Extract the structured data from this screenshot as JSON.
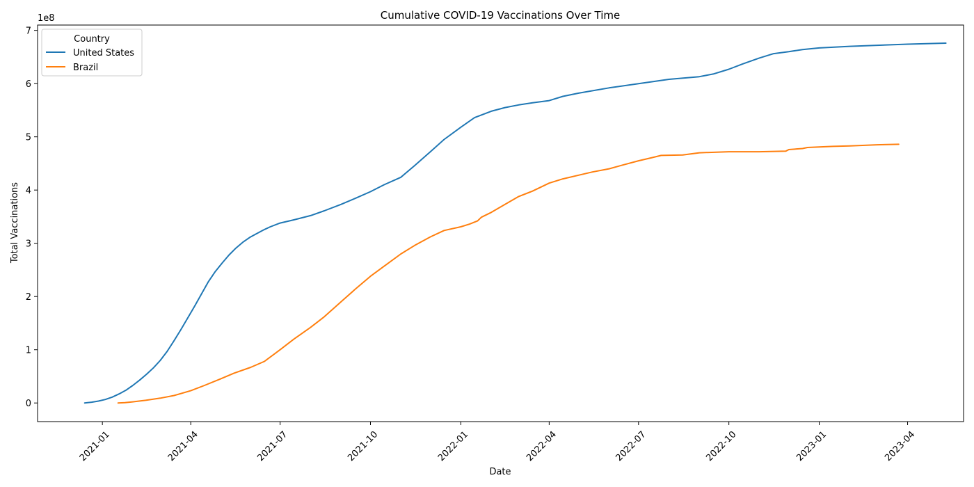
{
  "chart_data": {
    "type": "line",
    "title": "Cumulative COVID-19 Vaccinations Over Time",
    "xlabel": "Date",
    "ylabel": "Total Vaccinations",
    "y_offset_label": "1e8",
    "ylim": [
      -35000000,
      710000000
    ],
    "xlim": [
      "2020-10-27",
      "2023-05-28"
    ],
    "grid": false,
    "legend": {
      "title": "Country",
      "placement": "top-left"
    },
    "x_ticks": [
      "2021-01",
      "2021-04",
      "2021-07",
      "2021-10",
      "2022-01",
      "2022-04",
      "2022-07",
      "2022-10",
      "2023-01",
      "2023-04"
    ],
    "y_ticks": [
      0,
      100000000,
      200000000,
      300000000,
      400000000,
      500000000,
      600000000,
      700000000
    ],
    "y_tick_labels": [
      "0",
      "1",
      "2",
      "3",
      "4",
      "5",
      "6",
      "7"
    ],
    "series": [
      {
        "name": "United States",
        "color": "#1f77b4",
        "points": [
          [
            "2020-12-14",
            0
          ],
          [
            "2020-12-21",
            1500000
          ],
          [
            "2020-12-28",
            3500000
          ],
          [
            "2021-01-04",
            6500000
          ],
          [
            "2021-01-11",
            11000000
          ],
          [
            "2021-01-18",
            17000000
          ],
          [
            "2021-01-25",
            24000000
          ],
          [
            "2021-02-01",
            33000000
          ],
          [
            "2021-02-08",
            43000000
          ],
          [
            "2021-02-15",
            54000000
          ],
          [
            "2021-02-22",
            66000000
          ],
          [
            "2021-03-01",
            80000000
          ],
          [
            "2021-03-08",
            97000000
          ],
          [
            "2021-03-15",
            117000000
          ],
          [
            "2021-03-22",
            138000000
          ],
          [
            "2021-03-29",
            160000000
          ],
          [
            "2021-04-05",
            182000000
          ],
          [
            "2021-04-12",
            205000000
          ],
          [
            "2021-04-19",
            228000000
          ],
          [
            "2021-04-26",
            247000000
          ],
          [
            "2021-05-03",
            263000000
          ],
          [
            "2021-05-10",
            278000000
          ],
          [
            "2021-05-17",
            291000000
          ],
          [
            "2021-05-24",
            302000000
          ],
          [
            "2021-05-31",
            311000000
          ],
          [
            "2021-06-07",
            318000000
          ],
          [
            "2021-06-14",
            325000000
          ],
          [
            "2021-06-21",
            331000000
          ],
          [
            "2021-07-01",
            338000000
          ],
          [
            "2021-07-15",
            344000000
          ],
          [
            "2021-08-01",
            352000000
          ],
          [
            "2021-08-15",
            361000000
          ],
          [
            "2021-09-01",
            373000000
          ],
          [
            "2021-09-15",
            384000000
          ],
          [
            "2021-10-01",
            397000000
          ],
          [
            "2021-10-15",
            410000000
          ],
          [
            "2021-11-01",
            424000000
          ],
          [
            "2021-11-15",
            446000000
          ],
          [
            "2021-12-01",
            472000000
          ],
          [
            "2021-12-15",
            495000000
          ],
          [
            "2022-01-01",
            518000000
          ],
          [
            "2022-01-15",
            536000000
          ],
          [
            "2022-02-01",
            548000000
          ],
          [
            "2022-02-15",
            555000000
          ],
          [
            "2022-03-01",
            560000000
          ],
          [
            "2022-03-15",
            564000000
          ],
          [
            "2022-04-01",
            568000000
          ],
          [
            "2022-04-15",
            576000000
          ],
          [
            "2022-05-01",
            582000000
          ],
          [
            "2022-06-01",
            592000000
          ],
          [
            "2022-07-01",
            600000000
          ],
          [
            "2022-08-01",
            608000000
          ],
          [
            "2022-09-01",
            613000000
          ],
          [
            "2022-09-15",
            618000000
          ],
          [
            "2022-10-01",
            627000000
          ],
          [
            "2022-10-15",
            637000000
          ],
          [
            "2022-11-01",
            648000000
          ],
          [
            "2022-11-15",
            656000000
          ],
          [
            "2022-12-01",
            660000000
          ],
          [
            "2022-12-15",
            664000000
          ],
          [
            "2023-01-01",
            667000000
          ],
          [
            "2023-02-01",
            670000000
          ],
          [
            "2023-03-01",
            672000000
          ],
          [
            "2023-04-01",
            674000000
          ],
          [
            "2023-05-10",
            676000000
          ]
        ]
      },
      {
        "name": "Brazil",
        "color": "#ff7f0e",
        "points": [
          [
            "2021-01-17",
            0
          ],
          [
            "2021-01-24",
            500000
          ],
          [
            "2021-01-31",
            2000000
          ],
          [
            "2021-02-14",
            5000000
          ],
          [
            "2021-03-01",
            9000000
          ],
          [
            "2021-03-15",
            14000000
          ],
          [
            "2021-04-01",
            23000000
          ],
          [
            "2021-04-15",
            33000000
          ],
          [
            "2021-05-01",
            45000000
          ],
          [
            "2021-05-15",
            56000000
          ],
          [
            "2021-06-01",
            67000000
          ],
          [
            "2021-06-15",
            78000000
          ],
          [
            "2021-07-01",
            100000000
          ],
          [
            "2021-07-15",
            120000000
          ],
          [
            "2021-08-01",
            142000000
          ],
          [
            "2021-08-15",
            162000000
          ],
          [
            "2021-09-01",
            190000000
          ],
          [
            "2021-09-15",
            213000000
          ],
          [
            "2021-10-01",
            238000000
          ],
          [
            "2021-10-15",
            257000000
          ],
          [
            "2021-11-01",
            280000000
          ],
          [
            "2021-11-15",
            296000000
          ],
          [
            "2021-12-01",
            312000000
          ],
          [
            "2021-12-15",
            324000000
          ],
          [
            "2022-01-01",
            331000000
          ],
          [
            "2022-01-10",
            336000000
          ],
          [
            "2022-01-18",
            342000000
          ],
          [
            "2022-01-22",
            349000000
          ],
          [
            "2022-02-01",
            358000000
          ],
          [
            "2022-02-15",
            373000000
          ],
          [
            "2022-03-01",
            388000000
          ],
          [
            "2022-03-15",
            398000000
          ],
          [
            "2022-04-01",
            413000000
          ],
          [
            "2022-04-15",
            421000000
          ],
          [
            "2022-05-01",
            428000000
          ],
          [
            "2022-05-15",
            434000000
          ],
          [
            "2022-06-01",
            440000000
          ],
          [
            "2022-06-15",
            447000000
          ],
          [
            "2022-07-01",
            455000000
          ],
          [
            "2022-07-15",
            461000000
          ],
          [
            "2022-07-24",
            465000000
          ],
          [
            "2022-08-15",
            466000000
          ],
          [
            "2022-09-01",
            470000000
          ],
          [
            "2022-10-01",
            472000000
          ],
          [
            "2022-11-01",
            472000000
          ],
          [
            "2022-11-28",
            473000000
          ],
          [
            "2022-12-01",
            476000000
          ],
          [
            "2022-12-15",
            478000000
          ],
          [
            "2022-12-20",
            480000000
          ],
          [
            "2023-01-01",
            481000000
          ],
          [
            "2023-01-15",
            482000000
          ],
          [
            "2023-02-01",
            483000000
          ],
          [
            "2023-03-01",
            485000000
          ],
          [
            "2023-03-23",
            486000000
          ]
        ]
      }
    ]
  }
}
